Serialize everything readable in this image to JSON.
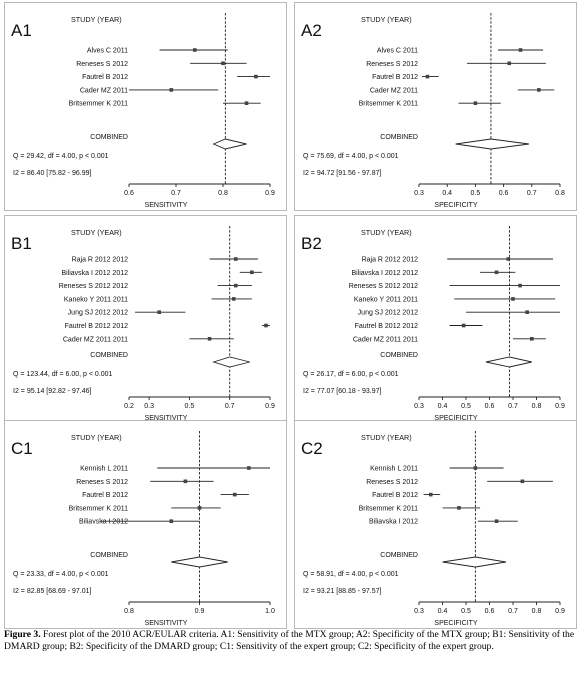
{
  "figure": {
    "caption_label": "Figure 3.",
    "caption_text": " Forest plot of the 2010 ACR/EULAR criteria. A1: Sensitivity of the MTX group; A2: Specificity of the MTX group; B1: Sensitivity of the DMARD group; B2: Specificity of the DMARD group; C1: Sensitivity of the expert group; C2: Specificity of the expert group."
  },
  "chart_data": [
    {
      "type": "forest",
      "panel_label": "A1",
      "header": "STUDY (YEAR)",
      "xlabel": "SENSITIVITY",
      "xlim": [
        0.6,
        0.9
      ],
      "xticks": [
        0.6,
        0.7,
        0.8,
        0.9
      ],
      "tick_labels": [
        "0.6",
        "0.7",
        "0.8",
        "0.9"
      ],
      "ref_line": 0.805,
      "studies": [
        {
          "name": "Alves C 2011",
          "est": 0.74,
          "lo": 0.665,
          "hi": 0.81
        },
        {
          "name": "Reneses S  2012",
          "est": 0.8,
          "lo": 0.73,
          "hi": 0.85
        },
        {
          "name": "Fautrel B  2012",
          "est": 0.87,
          "lo": 0.83,
          "hi": 0.9
        },
        {
          "name": "Cader MZ  2011",
          "est": 0.69,
          "lo": 0.6,
          "hi": 0.79
        },
        {
          "name": "Britsemmer K  2011",
          "est": 0.85,
          "lo": 0.8,
          "hi": 0.88
        }
      ],
      "combined": {
        "label": "COMBINED",
        "est": 0.805,
        "lo": 0.78,
        "hi": 0.85
      },
      "stat_q": "Q = 29.42, df = 4.00, p < 0.001",
      "stat_i2": "I2 = 86.40 [75.82 - 96.99]"
    },
    {
      "type": "forest",
      "panel_label": "A2",
      "header": "STUDY (YEAR)",
      "xlabel": "SPECIFICITY",
      "xlim": [
        0.3,
        0.8
      ],
      "xticks": [
        0.3,
        0.4,
        0.5,
        0.6,
        0.7,
        0.8
      ],
      "tick_labels": [
        "0.3",
        "0.4",
        "0.5",
        "0.6",
        "0.7",
        "0.8"
      ],
      "ref_line": 0.555,
      "studies": [
        {
          "name": "Alves C 2011",
          "est": 0.66,
          "lo": 0.58,
          "hi": 0.74
        },
        {
          "name": "Reneses S  2012",
          "est": 0.62,
          "lo": 0.47,
          "hi": 0.75
        },
        {
          "name": "Fautrel B  2012",
          "est": 0.33,
          "lo": 0.31,
          "hi": 0.37
        },
        {
          "name": "Cader MZ  2011",
          "est": 0.725,
          "lo": 0.65,
          "hi": 0.78
        },
        {
          "name": "Britsemmer K  2011",
          "est": 0.5,
          "lo": 0.44,
          "hi": 0.59
        }
      ],
      "combined": {
        "label": "COMBINED",
        "est": 0.555,
        "lo": 0.43,
        "hi": 0.69
      },
      "stat_q": "Q = 75.69, df = 4.00, p < 0.001",
      "stat_i2": "I2 = 94.72 [91.56 - 97.87]"
    },
    {
      "type": "forest",
      "panel_label": "B1",
      "header": "STUDY (YEAR)",
      "xlabel": "SENSITIVITY",
      "xlim": [
        0.2,
        0.9
      ],
      "xticks": [
        0.2,
        0.3,
        0.5,
        0.7,
        0.9
      ],
      "tick_labels": [
        "0.2",
        "0.3",
        "0.5",
        "0.7",
        "0.9"
      ],
      "ref_line": 0.7,
      "studies": [
        {
          "name": "Raja R 2012 2012",
          "est": 0.73,
          "lo": 0.6,
          "hi": 0.84
        },
        {
          "name": "Biliavska I 2012 2012",
          "est": 0.81,
          "lo": 0.75,
          "hi": 0.86
        },
        {
          "name": "Reneses S 2012 2012",
          "est": 0.73,
          "lo": 0.64,
          "hi": 0.81
        },
        {
          "name": "Kaneko Y 2011 2011",
          "est": 0.72,
          "lo": 0.61,
          "hi": 0.81
        },
        {
          "name": "Jung SJ 2012 2012",
          "est": 0.35,
          "lo": 0.23,
          "hi": 0.48
        },
        {
          "name": "Fautrel B 2012 2012",
          "est": 0.88,
          "lo": 0.86,
          "hi": 0.9
        },
        {
          "name": "Cader MZ 2011 2011",
          "est": 0.6,
          "lo": 0.5,
          "hi": 0.72
        }
      ],
      "combined": {
        "label": "COMBINED",
        "est": 0.7,
        "lo": 0.62,
        "hi": 0.8
      },
      "stat_q": "Q = 123.44, df = 6.00, p < 0.001",
      "stat_i2": "I2 = 95.14 [92.82 - 97.46]"
    },
    {
      "type": "forest",
      "panel_label": "B2",
      "header": "STUDY (YEAR)",
      "xlabel": "SPECIFICITY",
      "xlim": [
        0.3,
        0.9
      ],
      "xticks": [
        0.3,
        0.4,
        0.5,
        0.6,
        0.7,
        0.8,
        0.9
      ],
      "tick_labels": [
        "0.3",
        "0.4",
        "0.5",
        "0.6",
        "0.7",
        "0.8",
        "0.9"
      ],
      "ref_line": 0.685,
      "studies": [
        {
          "name": "Raja R 2012 2012",
          "est": 0.68,
          "lo": 0.42,
          "hi": 0.87
        },
        {
          "name": "Biliavska I 2012 2012",
          "est": 0.63,
          "lo": 0.56,
          "hi": 0.71
        },
        {
          "name": "Reneses S 2012 2012",
          "est": 0.73,
          "lo": 0.43,
          "hi": 0.9
        },
        {
          "name": "Kaneko Y 2011 2011",
          "est": 0.7,
          "lo": 0.45,
          "hi": 0.88
        },
        {
          "name": "Jung SJ 2012 2012",
          "est": 0.76,
          "lo": 0.5,
          "hi": 0.9
        },
        {
          "name": "Fautrel B 2012 2012",
          "est": 0.49,
          "lo": 0.43,
          "hi": 0.57
        },
        {
          "name": "Cader MZ 2011 2011",
          "est": 0.78,
          "lo": 0.7,
          "hi": 0.84
        }
      ],
      "combined": {
        "label": "COMBINED",
        "est": 0.685,
        "lo": 0.585,
        "hi": 0.78
      },
      "stat_q": "Q = 26.17, df = 6.00, p < 0.001",
      "stat_i2": "I2 = 77.07 [60.18 - 93.97]"
    },
    {
      "type": "forest",
      "panel_label": "C1",
      "header": "STUDY (YEAR)",
      "xlabel": "SENSITIVITY",
      "xlim": [
        0.8,
        1.0
      ],
      "xticks": [
        0.8,
        0.9,
        1.0
      ],
      "tick_labels": [
        "0.8",
        "0.9",
        "1.0"
      ],
      "ref_line": 0.9,
      "studies": [
        {
          "name": "Kennish L 2011",
          "est": 0.97,
          "lo": 0.84,
          "hi": 1.0
        },
        {
          "name": "Reneses S  2012",
          "est": 0.88,
          "lo": 0.83,
          "hi": 0.92
        },
        {
          "name": "Fautrel B  2012",
          "est": 0.95,
          "lo": 0.93,
          "hi": 0.97
        },
        {
          "name": "Britsemmer K  2011",
          "est": 0.9,
          "lo": 0.86,
          "hi": 0.93
        },
        {
          "name": "Biliavska I  2012",
          "est": 0.86,
          "lo": 0.76,
          "hi": 0.9
        }
      ],
      "combined": {
        "label": "COMBINED",
        "est": 0.9,
        "lo": 0.86,
        "hi": 0.94
      },
      "stat_q": "Q = 23.33, df = 4.00, p < 0.001",
      "stat_i2": "I2 = 82.85 [68.69 - 97.01]"
    },
    {
      "type": "forest",
      "panel_label": "C2",
      "header": "STUDY (YEAR)",
      "xlabel": "SPECIFICITY",
      "xlim": [
        0.3,
        0.9
      ],
      "xticks": [
        0.3,
        0.4,
        0.5,
        0.6,
        0.7,
        0.8,
        0.9
      ],
      "tick_labels": [
        "0.3",
        "0.4",
        "0.5",
        "0.6",
        "0.7",
        "0.8",
        "0.9"
      ],
      "ref_line": 0.54,
      "studies": [
        {
          "name": "Kennish L 2011",
          "est": 0.54,
          "lo": 0.43,
          "hi": 0.66
        },
        {
          "name": "Reneses S  2012",
          "est": 0.74,
          "lo": 0.59,
          "hi": 0.87
        },
        {
          "name": "Fautrel B  2012",
          "est": 0.35,
          "lo": 0.32,
          "hi": 0.39
        },
        {
          "name": "Britsemmer K  2011",
          "est": 0.47,
          "lo": 0.4,
          "hi": 0.56
        },
        {
          "name": "Biliavska I  2012",
          "est": 0.63,
          "lo": 0.55,
          "hi": 0.72
        }
      ],
      "combined": {
        "label": "COMBINED",
        "est": 0.54,
        "lo": 0.4,
        "hi": 0.67
      },
      "stat_q": "Q = 58.91, df = 4.00, p < 0.001",
      "stat_i2": "I2 = 93.21 [88.85 - 97.57]"
    }
  ]
}
